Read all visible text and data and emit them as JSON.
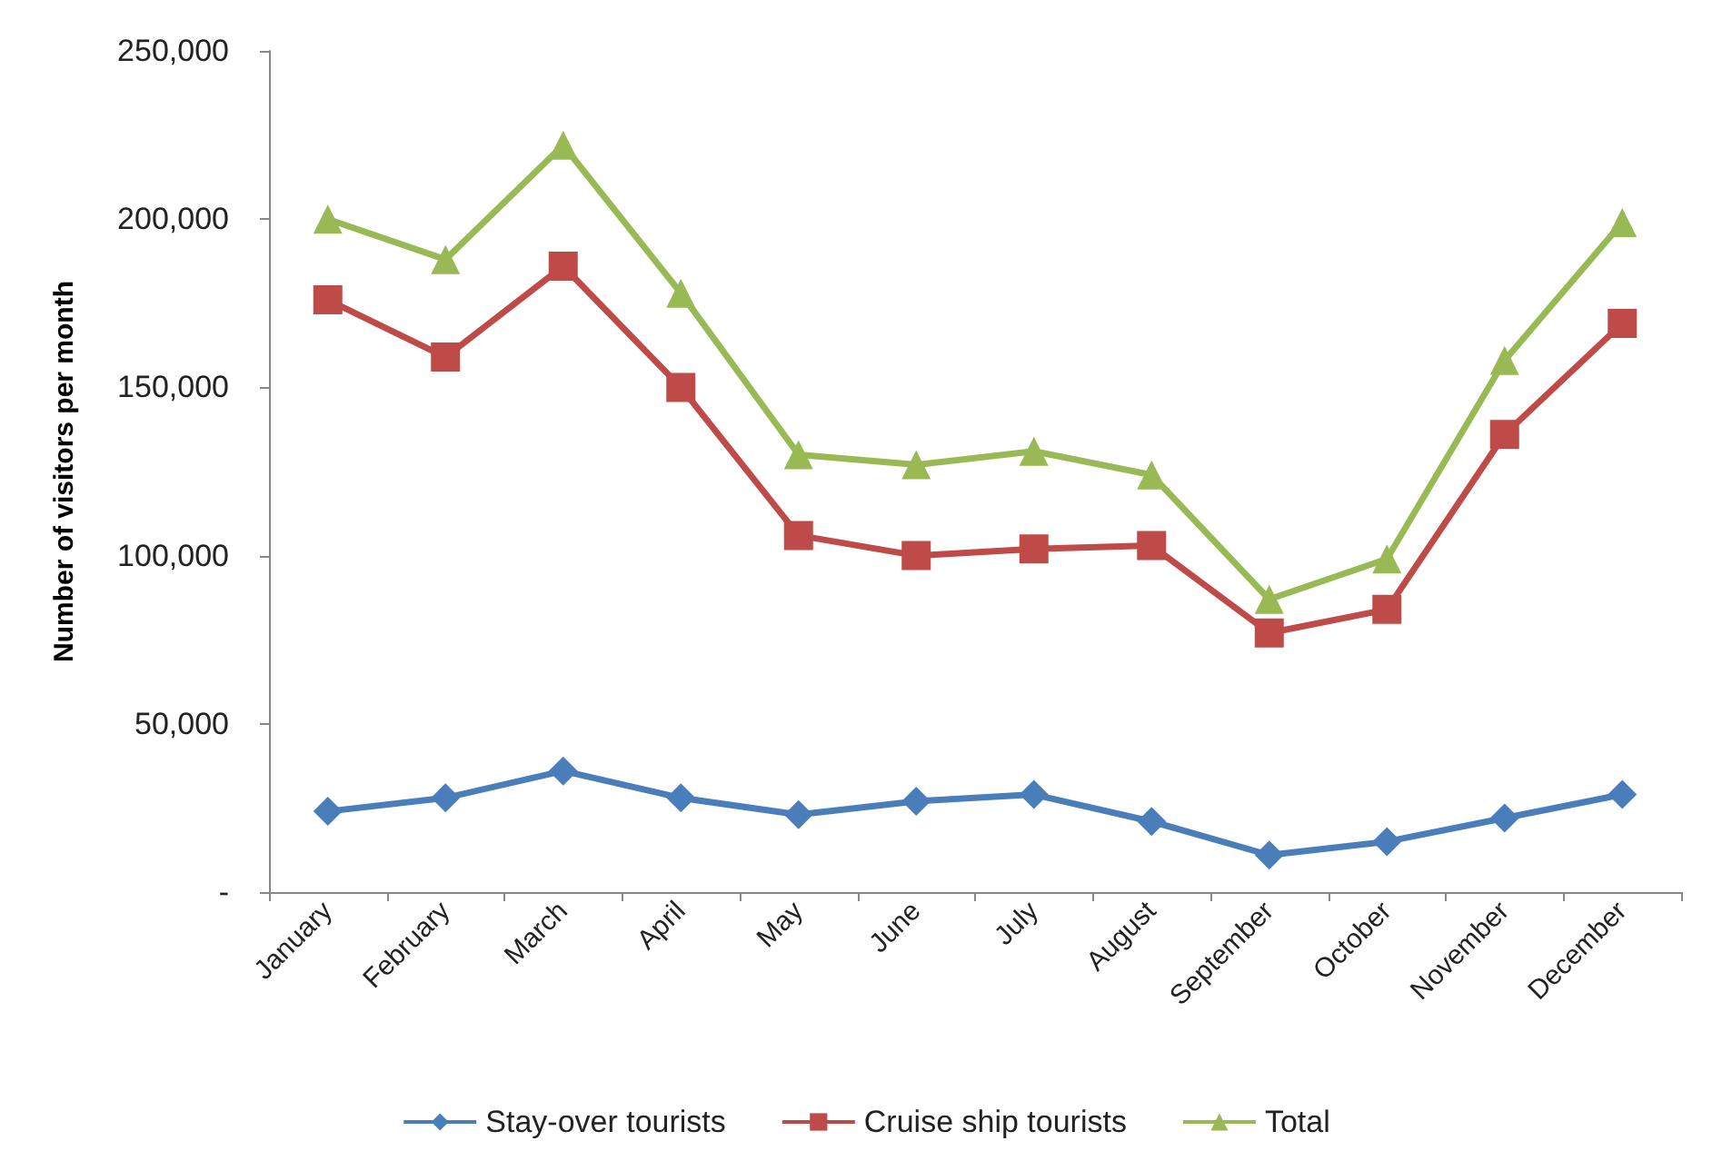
{
  "chart_data": {
    "type": "line",
    "ylabel": "Number of visitors per month",
    "categories": [
      "January",
      "February",
      "March",
      "April",
      "May",
      "June",
      "July",
      "August",
      "September",
      "October",
      "November",
      "December"
    ],
    "series": [
      {
        "name": "Stay-over tourists",
        "color": "#4a7ebb",
        "marker": "diamond",
        "values": [
          24000,
          28000,
          36000,
          28000,
          23000,
          27000,
          29000,
          21000,
          11000,
          15000,
          22000,
          29000
        ]
      },
      {
        "name": "Cruise ship tourists",
        "color": "#be4b48",
        "marker": "square",
        "values": [
          176000,
          159000,
          186000,
          150000,
          106000,
          100000,
          102000,
          103000,
          77000,
          84000,
          136000,
          169000
        ]
      },
      {
        "name": "Total",
        "color": "#98b954",
        "marker": "triangle",
        "values": [
          200000,
          188000,
          222000,
          178000,
          130000,
          127000,
          131000,
          124000,
          87000,
          99000,
          158000,
          199000
        ]
      }
    ],
    "ylim": [
      0,
      250000
    ],
    "yticks": [
      {
        "value": 0,
        "label": "-"
      },
      {
        "value": 50000,
        "label": "50,000"
      },
      {
        "value": 100000,
        "label": "100,000"
      },
      {
        "value": 150000,
        "label": "150,000"
      },
      {
        "value": 200000,
        "label": "200,000"
      },
      {
        "value": 250000,
        "label": "250,000"
      }
    ],
    "grid": false,
    "legend": "bottom"
  }
}
